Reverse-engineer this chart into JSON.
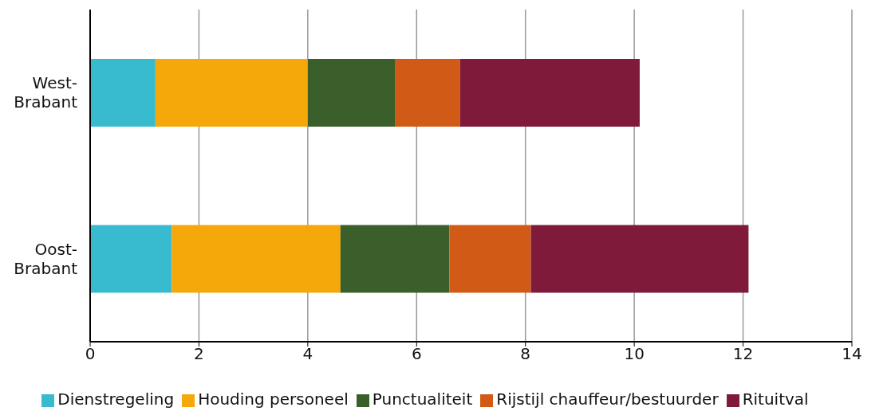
{
  "chart_data": {
    "type": "bar",
    "orientation": "horizontal",
    "stacked": true,
    "categories": [
      "West-Brabant",
      "Oost-Brabant"
    ],
    "series": [
      {
        "name": "Dienstregeling",
        "color": "#38bbcf",
        "values": [
          1.2,
          1.5
        ]
      },
      {
        "name": "Houding personeel",
        "color": "#f5a80a",
        "values": [
          2.8,
          3.1
        ]
      },
      {
        "name": "Punctualiteit",
        "color": "#3a5f2b",
        "values": [
          1.6,
          2.0
        ]
      },
      {
        "name": "Rijstijl chauffeur/bestuurder",
        "color": "#d15b16",
        "values": [
          1.2,
          1.5
        ]
      },
      {
        "name": "Rituitval",
        "color": "#7f1a3b",
        "values": [
          3.3,
          4.0
        ]
      }
    ],
    "xlim": [
      0,
      14
    ],
    "xticks": [
      0,
      2,
      4,
      6,
      8,
      10,
      12,
      14
    ],
    "grid": "x",
    "legend": "bottom"
  }
}
